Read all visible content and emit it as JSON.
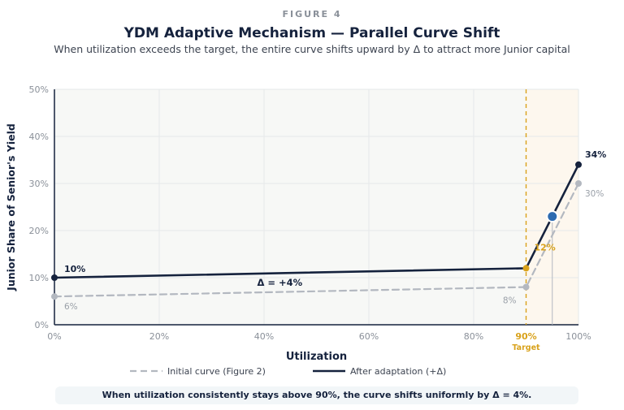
{
  "header": {
    "kicker": "FIGURE 4",
    "title": "YDM Adaptive Mechanism — Parallel Curve Shift",
    "subtitle": "When utilization exceeds the target, the entire curve shifts upward by Δ to attract more Junior capital"
  },
  "chart_data": {
    "type": "line",
    "xlabel": "Utilization",
    "ylabel": "Junior Share of Senior's Yield",
    "xlim": [
      0,
      100
    ],
    "ylim": [
      0,
      50
    ],
    "x_ticks": [
      "0%",
      "20%",
      "40%",
      "60%",
      "80%",
      "90%",
      "100%"
    ],
    "y_ticks": [
      "0%",
      "10%",
      "20%",
      "30%",
      "40%",
      "50%"
    ],
    "grid": true,
    "legend_position": "bottom",
    "target": {
      "x": 90,
      "label": "Target",
      "tick_label": "90%"
    },
    "series": [
      {
        "name": "Initial curve (Figure 2)",
        "style": "dashed",
        "color": "#b3b8c0",
        "x": [
          0,
          90,
          100
        ],
        "y": [
          6,
          8,
          30
        ],
        "labels": [
          "6%",
          "8%",
          "30%"
        ]
      },
      {
        "name": "After adaptation (+Δ)",
        "style": "solid",
        "color": "#15223d",
        "x": [
          0,
          90,
          100
        ],
        "y": [
          10,
          12,
          34
        ],
        "labels": [
          "10%",
          "12%",
          "34%"
        ]
      }
    ],
    "current_point": {
      "x": 95,
      "y": 23,
      "color": "#2d6bb0"
    },
    "annotations": [
      {
        "text": "Δ = +4%",
        "x": 43,
        "y": 9
      }
    ],
    "colors": {
      "target": "#d9a21b",
      "highlight_region": "#fdf7ee",
      "plot_bg": "#f7f8f6"
    }
  },
  "footer": {
    "note": "When utilization consistently stays above 90%, the curve shifts uniformly by Δ = 4%."
  }
}
